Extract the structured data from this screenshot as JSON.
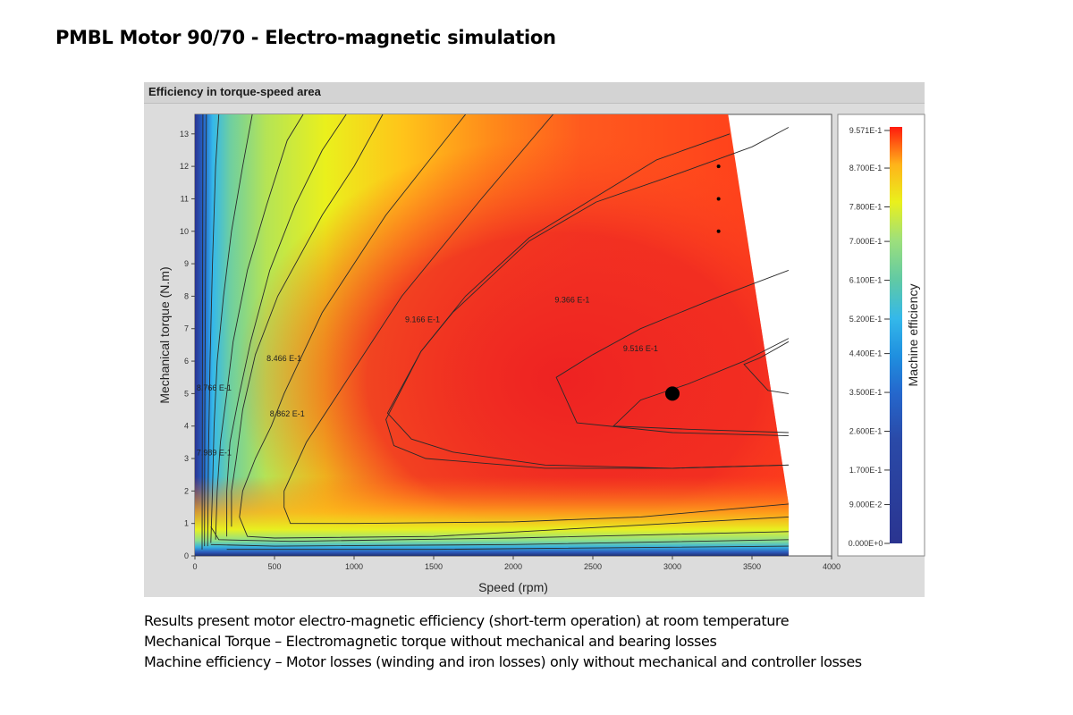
{
  "page": {
    "title": "PMBL Motor 90/70 - Electro-magnetic simulation",
    "panel_title": "Efficiency in torque-speed area",
    "notes": [
      "Results present motor electro-magnetic efficiency (short-term operation) at room temperature",
      "Mechanical Torque – Electromagnetic torque without mechanical and bearing losses",
      "Machine efficiency – Motor losses (winding and iron losses) only without mechanical and controller losses"
    ]
  },
  "chart_data": {
    "type": "heatmap",
    "title": "Efficiency in torque-speed area",
    "xlabel": "Speed (rpm)",
    "ylabel": "Mechanical torque (N.m)",
    "xlim": [
      0,
      4000
    ],
    "ylim": [
      0,
      13.6
    ],
    "x_ticks": [
      0,
      500,
      1000,
      1500,
      2000,
      2500,
      3000,
      3500,
      4000
    ],
    "y_ticks": [
      0,
      1,
      2,
      3,
      4,
      5,
      6,
      7,
      8,
      9,
      10,
      11,
      12,
      13
    ],
    "grid": false,
    "colorbar": {
      "label": "Machine efficiency",
      "tick_labels": [
        "9.571E-1",
        "8.700E-1",
        "7.800E-1",
        "7.000E-1",
        "6.100E-1",
        "5.200E-1",
        "4.400E-1",
        "3.500E-1",
        "2.600E-1",
        "1.700E-1",
        "9.000E-2",
        "0.000E+0"
      ],
      "tick_values": [
        0.9571,
        0.87,
        0.78,
        0.7,
        0.61,
        0.52,
        0.44,
        0.35,
        0.26,
        0.17,
        0.09,
        0.0
      ],
      "colors": [
        "#ff1a0d",
        "#ffb31a",
        "#eaf01c",
        "#9fe07a",
        "#5fc9a6",
        "#34b8ea",
        "#1f8fdf",
        "#2567cc",
        "#2a4aa8",
        "#2a3490"
      ]
    },
    "operating_limit": [
      {
        "speed": 3350,
        "torque": 13.6
      },
      {
        "speed": 3730,
        "torque": 1.6
      },
      {
        "speed": 3730,
        "torque": 0
      }
    ],
    "contour_labels": [
      {
        "text": "9.516 E-1",
        "speed": 2800,
        "torque": 6.3
      },
      {
        "text": "9.366 E-1",
        "speed": 2370,
        "torque": 7.8
      },
      {
        "text": "9.166 E-1",
        "speed": 1430,
        "torque": 7.2
      },
      {
        "text": "8.466 E-1",
        "speed": 560,
        "torque": 6.0
      },
      {
        "text": "8.862 E-1",
        "speed": 580,
        "torque": 4.3
      },
      {
        "text": "8.766 E-1",
        "speed": 120,
        "torque": 5.1
      },
      {
        "text": "7.989 E-1",
        "speed": 120,
        "torque": 3.1
      }
    ],
    "markers": [
      {
        "speed": 3000,
        "torque": 5.0,
        "size": "large"
      },
      {
        "speed": 3290,
        "torque": 12.0,
        "size": "small"
      },
      {
        "speed": 3290,
        "torque": 11.0,
        "size": "small"
      },
      {
        "speed": 3290,
        "torque": 10.0,
        "size": "small"
      }
    ]
  }
}
